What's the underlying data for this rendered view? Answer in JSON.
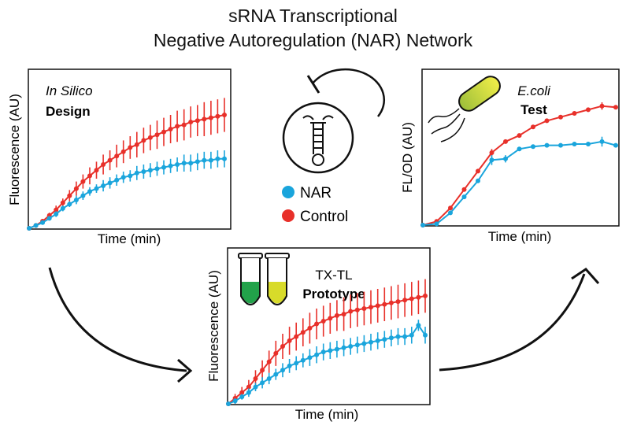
{
  "figure": {
    "title_line1": "sRNA Transcriptional",
    "title_line2": "Negative Autoregulation (NAR) Network"
  },
  "legend": {
    "items": [
      {
        "label": "NAR",
        "color": "#1aa5dc"
      },
      {
        "label": "Control",
        "color": "#e8302a"
      }
    ]
  },
  "icons": [
    "negative-feedback-arrow-icon",
    "srna-hairpin-icon",
    "ecoli-cell-icon",
    "test-tubes-icon",
    "cycle-arrow-icon"
  ],
  "colors": {
    "nar": "#1aa5dc",
    "control": "#e8302a",
    "ecoli_fill_start": "#a8c43a",
    "ecoli_fill_end": "#f3ef4a",
    "tube_green": "#22a24a",
    "tube_yellow": "#d8db2a"
  },
  "chart_data": [
    {
      "type": "line",
      "panel": "in-silico",
      "label_italic": "In Silico",
      "label_bold": "Design",
      "xlabel": "Time (min)",
      "ylabel": "Fluorescence (AU)",
      "xlim": [
        0,
        29
      ],
      "ylim": [
        0,
        100
      ],
      "x": [
        0,
        1,
        2,
        3,
        4,
        5,
        6,
        7,
        8,
        9,
        10,
        11,
        12,
        13,
        14,
        15,
        16,
        17,
        18,
        19,
        20,
        21,
        22,
        23,
        24,
        25,
        26,
        27,
        28,
        29
      ],
      "series": [
        {
          "name": "Control",
          "color": "#e8302a",
          "values": [
            0,
            2,
            5,
            9,
            13,
            18,
            23,
            28,
            33,
            37,
            41,
            45,
            48,
            51,
            54,
            57,
            59,
            62,
            64,
            66,
            68,
            70,
            72,
            73,
            75,
            76,
            77,
            78,
            79,
            80
          ],
          "err": [
            0,
            1,
            1,
            2,
            3,
            3,
            4,
            5,
            5,
            6,
            6,
            7,
            7,
            8,
            8,
            8,
            9,
            9,
            9,
            10,
            10,
            10,
            11,
            11,
            11,
            11,
            12,
            12,
            12,
            12
          ]
        },
        {
          "name": "NAR",
          "color": "#1aa5dc",
          "values": [
            0,
            2,
            4,
            7,
            10,
            14,
            17,
            20,
            23,
            26,
            28,
            30,
            32,
            34,
            36,
            37,
            39,
            40,
            41,
            42,
            43,
            44,
            45,
            46,
            46,
            47,
            48,
            48,
            49,
            49
          ],
          "err": [
            0,
            1,
            1,
            1,
            2,
            2,
            2,
            3,
            3,
            3,
            3,
            4,
            4,
            4,
            4,
            4,
            5,
            5,
            5,
            5,
            5,
            5,
            5,
            6,
            6,
            6,
            6,
            6,
            6,
            6
          ]
        }
      ]
    },
    {
      "type": "line",
      "panel": "tx-tl",
      "label_plain": "TX-TL",
      "label_bold": "Prototype",
      "xlabel": "Time (min)",
      "ylabel": "Fluorescence (AU)",
      "xlim": [
        0,
        29
      ],
      "ylim": [
        0,
        100
      ],
      "x": [
        0,
        1,
        2,
        3,
        4,
        5,
        6,
        7,
        8,
        9,
        10,
        11,
        12,
        13,
        14,
        15,
        16,
        17,
        18,
        19,
        20,
        21,
        22,
        23,
        24,
        25,
        26,
        27,
        28,
        29
      ],
      "series": [
        {
          "name": "Control",
          "color": "#e8302a",
          "values": [
            0,
            4,
            8,
            12,
            18,
            24,
            30,
            36,
            41,
            45,
            48,
            51,
            54,
            57,
            59,
            61,
            63,
            64,
            66,
            67,
            68,
            69,
            70,
            71,
            72,
            73,
            74,
            75,
            76,
            77
          ],
          "err": [
            0,
            3,
            4,
            5,
            6,
            7,
            8,
            9,
            9,
            10,
            10,
            10,
            11,
            11,
            11,
            11,
            11,
            12,
            12,
            12,
            12,
            12,
            12,
            12,
            12,
            12,
            12,
            12,
            12,
            12
          ]
        },
        {
          "name": "NAR",
          "color": "#1aa5dc",
          "values": [
            0,
            2,
            5,
            8,
            12,
            15,
            18,
            21,
            24,
            27,
            29,
            31,
            33,
            35,
            37,
            38,
            39,
            40,
            41,
            42,
            43,
            44,
            45,
            46,
            47,
            48,
            48,
            49,
            56,
            49
          ],
          "err": [
            0,
            2,
            2,
            3,
            3,
            4,
            4,
            4,
            5,
            5,
            5,
            5,
            6,
            6,
            6,
            6,
            6,
            6,
            6,
            6,
            6,
            6,
            6,
            6,
            6,
            6,
            6,
            6,
            4,
            6
          ]
        }
      ]
    },
    {
      "type": "line",
      "panel": "e-coli",
      "label_italic": "E.coli",
      "label_bold": "Test",
      "xlabel": "Time (min)",
      "ylabel": "FL/OD (AU)",
      "xlim": [
        0,
        14
      ],
      "ylim": [
        0,
        100
      ],
      "x": [
        0,
        1,
        2,
        3,
        4,
        5,
        6,
        7,
        8,
        9,
        10,
        11,
        12,
        13,
        14
      ],
      "series": [
        {
          "name": "Control",
          "color": "#e8302a",
          "values": [
            0,
            3,
            14,
            29,
            44,
            59,
            68,
            73,
            80,
            85,
            88,
            91,
            94,
            97,
            96
          ],
          "err": [
            0,
            0,
            0,
            0,
            0,
            3,
            0,
            0,
            0,
            0,
            0,
            0,
            0,
            3,
            0
          ]
        },
        {
          "name": "NAR",
          "color": "#1aa5dc",
          "values": [
            0,
            1,
            10,
            23,
            36,
            53,
            54,
            62,
            64,
            65,
            65,
            66,
            66,
            68,
            65
          ],
          "err": [
            0,
            0,
            0,
            0,
            0,
            4,
            3,
            0,
            0,
            0,
            0,
            0,
            0,
            4,
            0
          ]
        }
      ]
    }
  ]
}
